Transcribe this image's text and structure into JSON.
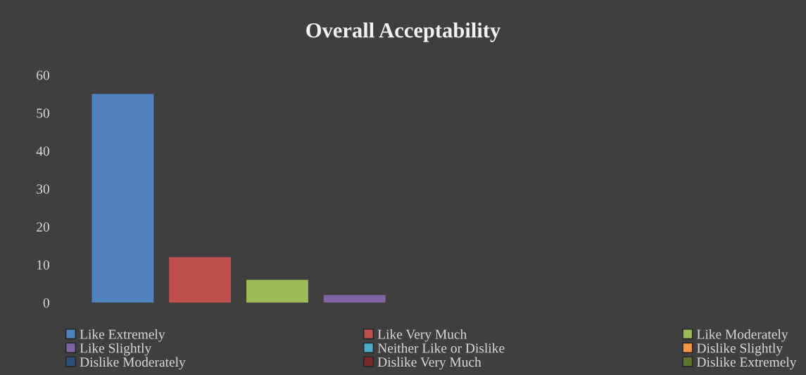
{
  "chart_data": {
    "type": "bar",
    "title": "Overall Acceptability",
    "categories": [
      null
    ],
    "series": [
      {
        "name": "Like Extremely",
        "color": "#4f81bd",
        "values": [
          55
        ]
      },
      {
        "name": "Like Very Much",
        "color": "#c0504d",
        "values": [
          12
        ]
      },
      {
        "name": "Like Moderately",
        "color": "#9bbb59",
        "values": [
          6
        ]
      },
      {
        "name": "Like Slightly",
        "color": "#8064a2",
        "values": [
          2
        ]
      },
      {
        "name": "Neither Like or Dislike",
        "color": "#4bacc6",
        "values": [
          0
        ]
      },
      {
        "name": "Dislike Slightly",
        "color": "#f79646",
        "values": [
          0
        ]
      },
      {
        "name": "Dislike Moderately",
        "color": "#2c4d75",
        "values": [
          0
        ]
      },
      {
        "name": "Dislike Very Much",
        "color": "#772c2a",
        "values": [
          0
        ]
      },
      {
        "name": "Dislike Extremely",
        "color": "#5f7530",
        "values": [
          0
        ]
      }
    ],
    "ylim": [
      0,
      60
    ],
    "yticks": [
      0,
      10,
      20,
      30,
      40,
      50,
      60
    ],
    "grid": false,
    "legend": "bottom"
  }
}
